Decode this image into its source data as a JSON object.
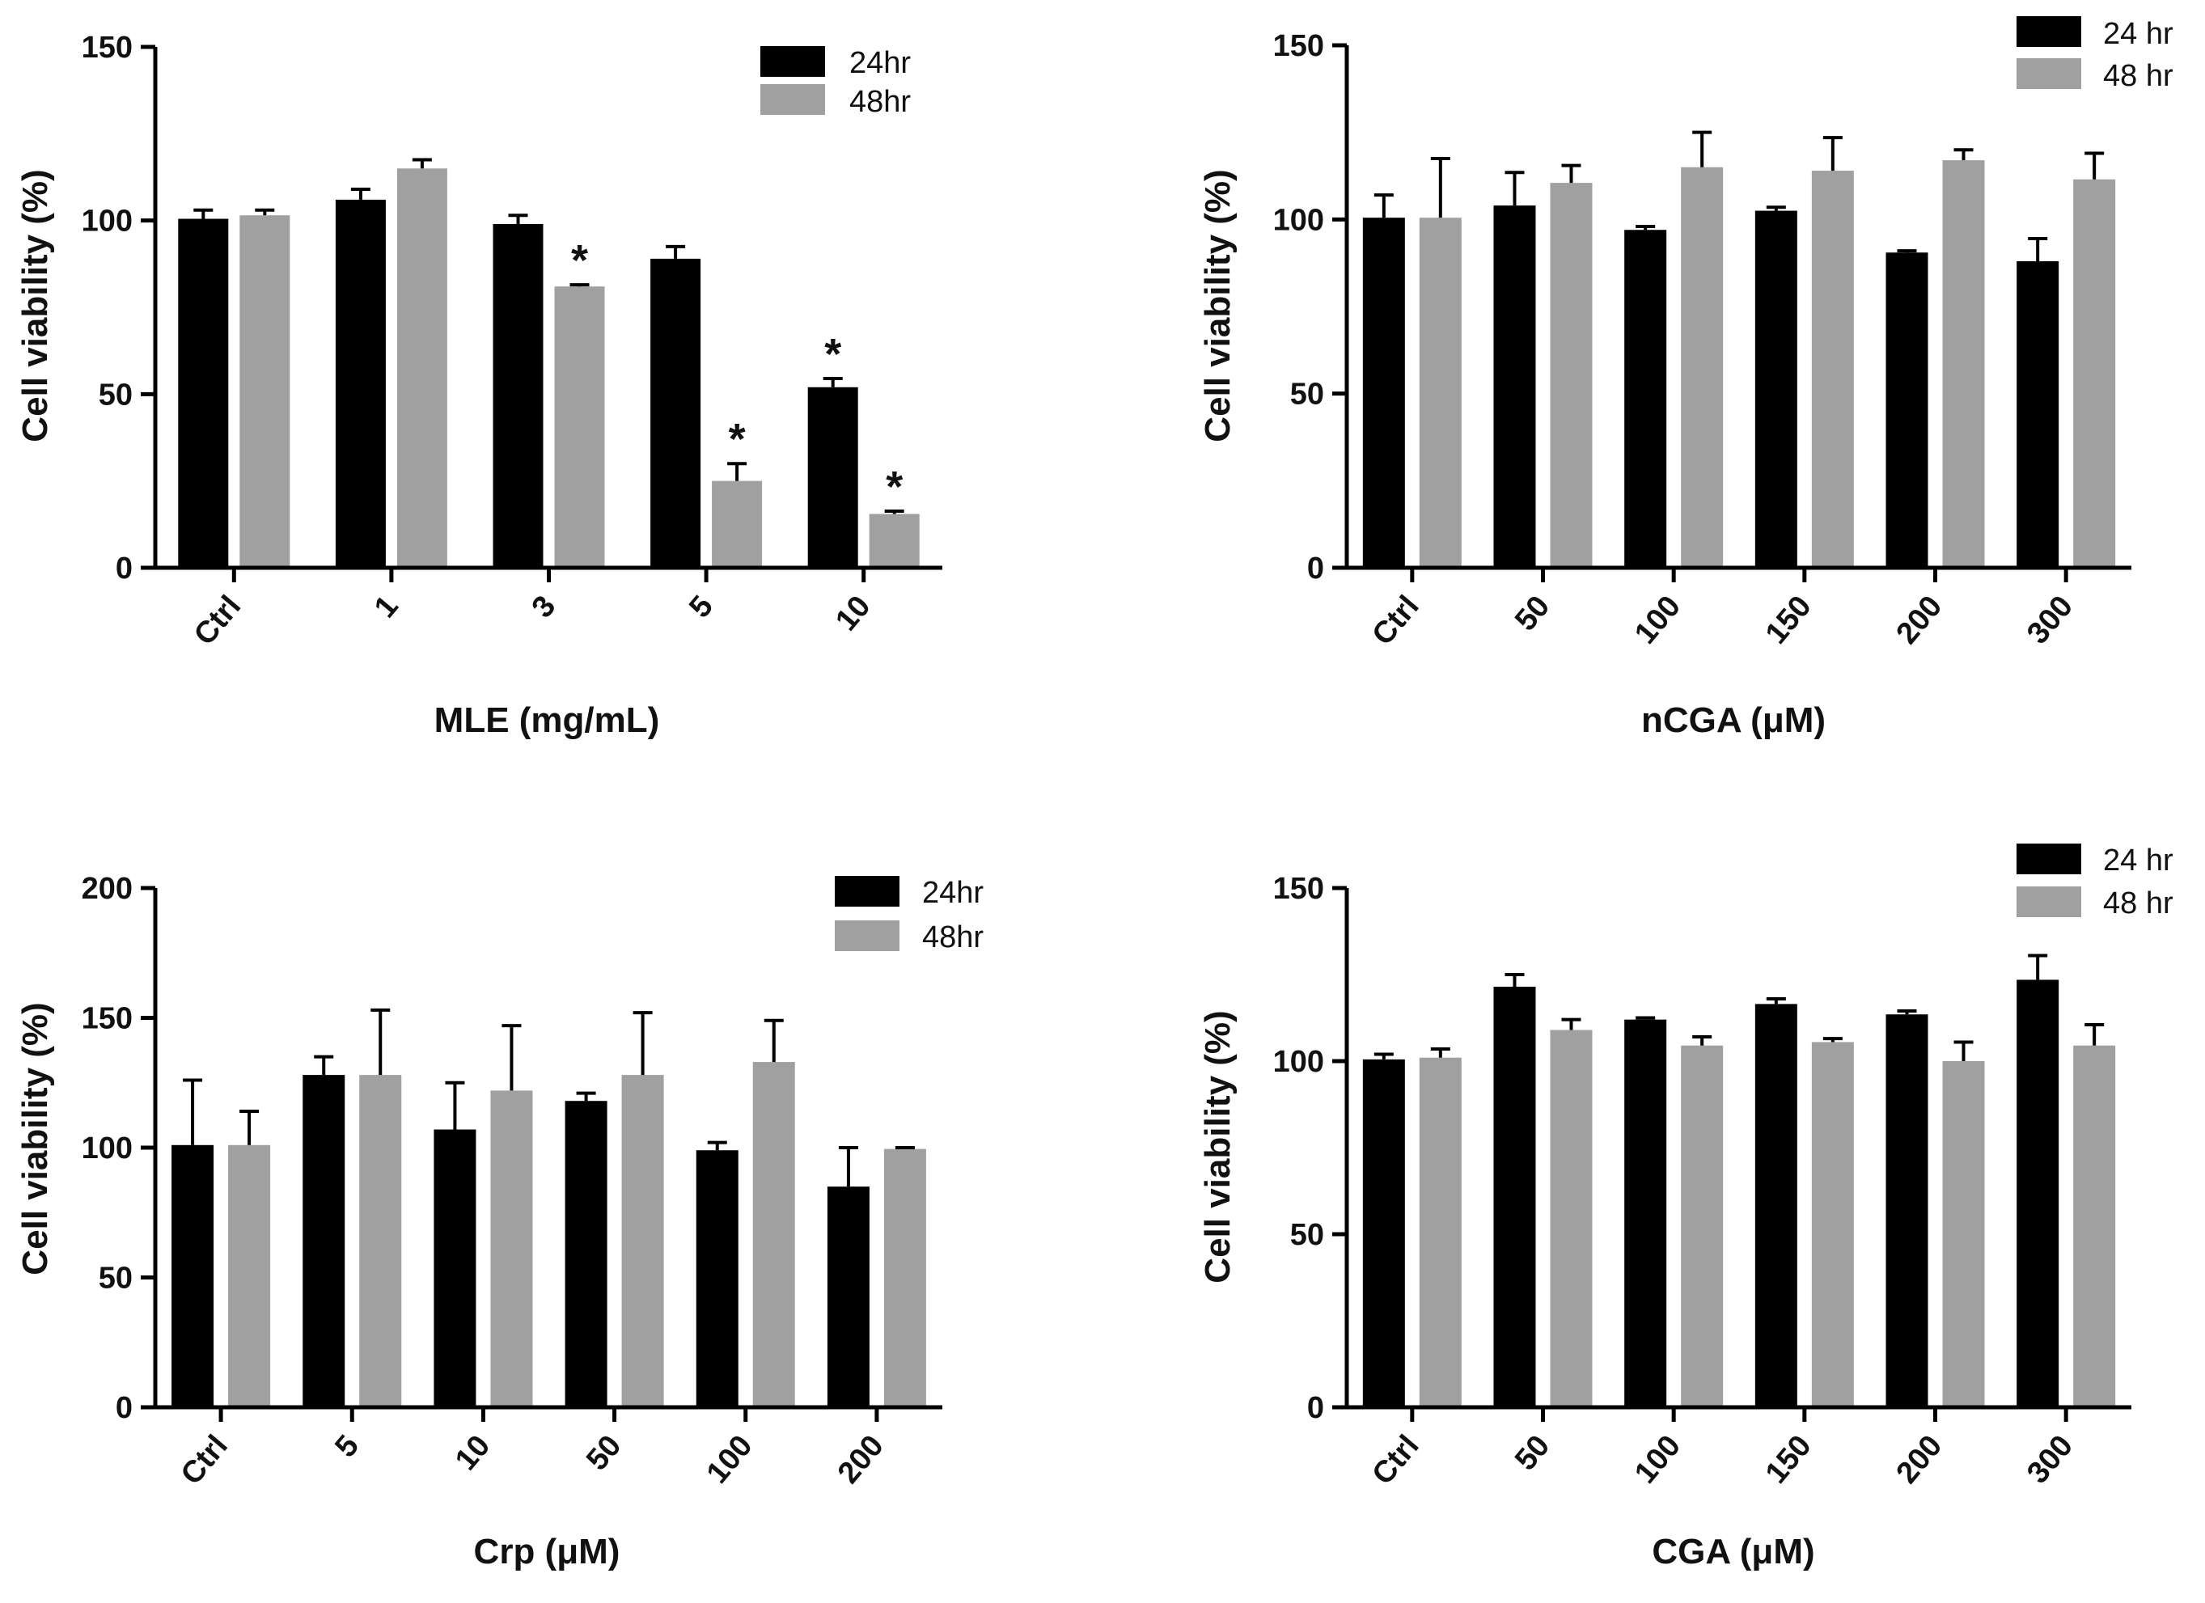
{
  "colors": {
    "h24": "#000000",
    "h48": "#a0a0a0",
    "axis": "#000000"
  },
  "chart_data": [
    {
      "id": "mle",
      "type": "bar",
      "title": "",
      "xlabel": "MLE (mg/mL)",
      "ylabel": "Cell viability  (%)",
      "ylim": [
        0,
        150
      ],
      "yticks": [
        0,
        50,
        100,
        150
      ],
      "categories": [
        "Ctrl",
        "1",
        "3",
        "5",
        "10"
      ],
      "legend_position": "top-right",
      "series": [
        {
          "name": "24hr",
          "values": [
            100.5,
            106,
            99,
            89,
            52
          ],
          "errors": [
            2.5,
            3,
            2.5,
            3.5,
            2.5
          ],
          "significant": [
            false,
            false,
            false,
            false,
            true
          ]
        },
        {
          "name": "48hr",
          "values": [
            101.5,
            115,
            81,
            25,
            15.5
          ],
          "errors": [
            1.5,
            2.5,
            0.5,
            5,
            0.8
          ],
          "significant": [
            false,
            false,
            true,
            true,
            true
          ]
        }
      ],
      "annotation": "*"
    },
    {
      "id": "ncga",
      "type": "bar",
      "title": "",
      "xlabel": "nCGA (μM)",
      "ylabel": "Cell viability  (%)",
      "ylim": [
        0,
        150
      ],
      "yticks": [
        0,
        50,
        100,
        150
      ],
      "categories": [
        "Ctrl",
        "50",
        "100",
        "150",
        "200",
        "300"
      ],
      "legend_position": "top-right",
      "series": [
        {
          "name": "24 hr",
          "values": [
            100.5,
            104,
            97,
            102.5,
            90.5,
            88
          ],
          "errors": [
            6.5,
            9.5,
            1,
            1,
            0.5,
            6.5
          ],
          "significant": [
            false,
            false,
            false,
            false,
            false,
            false
          ]
        },
        {
          "name": "48 hr",
          "values": [
            100.5,
            110.5,
            115,
            114,
            117,
            111.5
          ],
          "errors": [
            17,
            5,
            10,
            9.5,
            3,
            7.5
          ],
          "significant": [
            false,
            false,
            false,
            false,
            false,
            false
          ]
        }
      ],
      "annotation": ""
    },
    {
      "id": "crp",
      "type": "bar",
      "title": "",
      "xlabel": "Crp (μM)",
      "ylabel": "Cell viability  (%)",
      "ylim": [
        0,
        200
      ],
      "yticks": [
        0,
        50,
        100,
        150,
        200
      ],
      "categories": [
        "Ctrl",
        "5",
        "10",
        "50",
        "100",
        "200"
      ],
      "legend_position": "top-right",
      "series": [
        {
          "name": "24hr",
          "values": [
            101,
            128,
            107,
            118,
            99,
            85
          ],
          "errors": [
            25,
            7,
            18,
            3,
            3,
            15
          ],
          "significant": [
            false,
            false,
            false,
            false,
            false,
            false
          ]
        },
        {
          "name": "48hr",
          "values": [
            101,
            128,
            122,
            128,
            133,
            99.5
          ],
          "errors": [
            13,
            25,
            25,
            24,
            16,
            0.5
          ],
          "significant": [
            false,
            false,
            false,
            false,
            false,
            false
          ]
        }
      ],
      "annotation": ""
    },
    {
      "id": "cga",
      "type": "bar",
      "title": "",
      "xlabel": "CGA (μM)",
      "ylabel": "Cell viability  (%)",
      "ylim": [
        0,
        150
      ],
      "yticks": [
        0,
        50,
        100,
        150
      ],
      "categories": [
        "Ctrl",
        "50",
        "100",
        "150",
        "200",
        "300"
      ],
      "legend_position": "top-right",
      "series": [
        {
          "name": "24 hr",
          "values": [
            100.5,
            121.5,
            112,
            116.5,
            113.5,
            123.5
          ],
          "errors": [
            1.5,
            3.5,
            0.5,
            1.5,
            1,
            7
          ],
          "significant": [
            false,
            false,
            false,
            false,
            false,
            false
          ]
        },
        {
          "name": "48 hr",
          "values": [
            101,
            109,
            104.5,
            105.5,
            100,
            104.5
          ],
          "errors": [
            2.5,
            3,
            2.5,
            1,
            5.5,
            6
          ],
          "significant": [
            false,
            false,
            false,
            false,
            false,
            false
          ]
        }
      ],
      "annotation": ""
    }
  ]
}
